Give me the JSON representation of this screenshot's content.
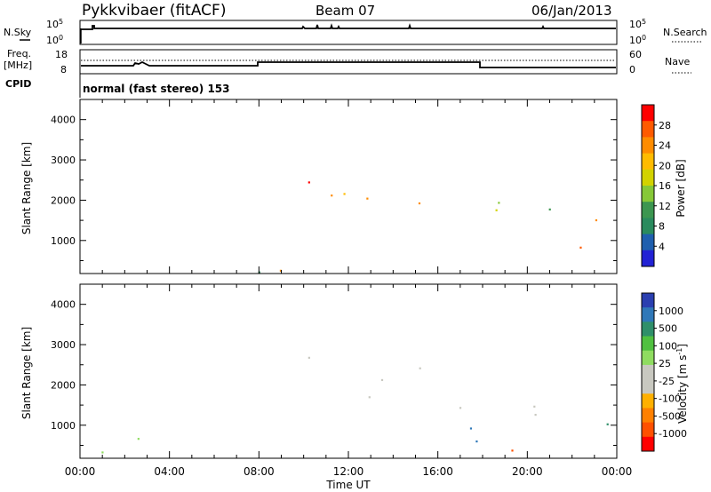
{
  "header": {
    "station": "Pykkvibaer (fitACF)",
    "beam": "Beam 07",
    "date": "06/Jan/2013"
  },
  "nsky_panel": {
    "left_label": "N.Sky",
    "right_label": "N.Search",
    "left_ticks": [
      "10^5",
      "10^0"
    ],
    "right_ticks": [
      "10^5",
      "10^0"
    ]
  },
  "freq_panel": {
    "left_label_1": "Freq.",
    "left_label_2": "[MHz]",
    "left_ticks": [
      "18",
      "8"
    ],
    "right_ticks": [
      "60",
      "0"
    ],
    "right_label": "Nave",
    "cpid_label": "CPID",
    "cpid_text": "normal (fast stereo) 153"
  },
  "chart_data": [
    {
      "type": "heatmap",
      "quantity": "Power",
      "ylabel": "Slant Range [km]",
      "ylim": [
        180,
        4500
      ],
      "yticks": [
        1000,
        2000,
        3000,
        4000
      ],
      "xlim": [
        0,
        24
      ],
      "colorbar_label": "Power [dB]",
      "colorbar_ticks": [
        "28",
        "24",
        "20",
        "16",
        "12",
        "8",
        "4"
      ],
      "colorbar_colors": [
        "#ff0000",
        "#ff5a00",
        "#ff8c00",
        "#ffbb00",
        "#d2d200",
        "#86c837",
        "#3c9650",
        "#2a8b5e",
        "#1f5fae",
        "#2222d4"
      ],
      "grid": false
    },
    {
      "type": "heatmap",
      "quantity": "Velocity",
      "ylabel": "Slant Range [km]",
      "ylim": [
        180,
        4500
      ],
      "yticks": [
        1000,
        2000,
        3000,
        4000
      ],
      "xlim": [
        0,
        24
      ],
      "colorbar_label": "Velocity [m s^-1]",
      "colorbar_ticks": [
        "1000",
        "500",
        "100",
        "25",
        "-25",
        "-100",
        "-500",
        "-1000"
      ],
      "colorbar_colors": [
        "#2a3fb0",
        "#2f78b8",
        "#2f8f6a",
        "#50c040",
        "#8fdc60",
        "#c8c8c0",
        "#c8c8c0",
        "#ffb000",
        "#ff8000",
        "#ff5000",
        "#ff0000"
      ],
      "grid": false
    }
  ],
  "xaxis": {
    "ticks": [
      "00:00",
      "04:00",
      "08:00",
      "12:00",
      "16:00",
      "20:00",
      "00:00"
    ],
    "label": "Time UT"
  }
}
